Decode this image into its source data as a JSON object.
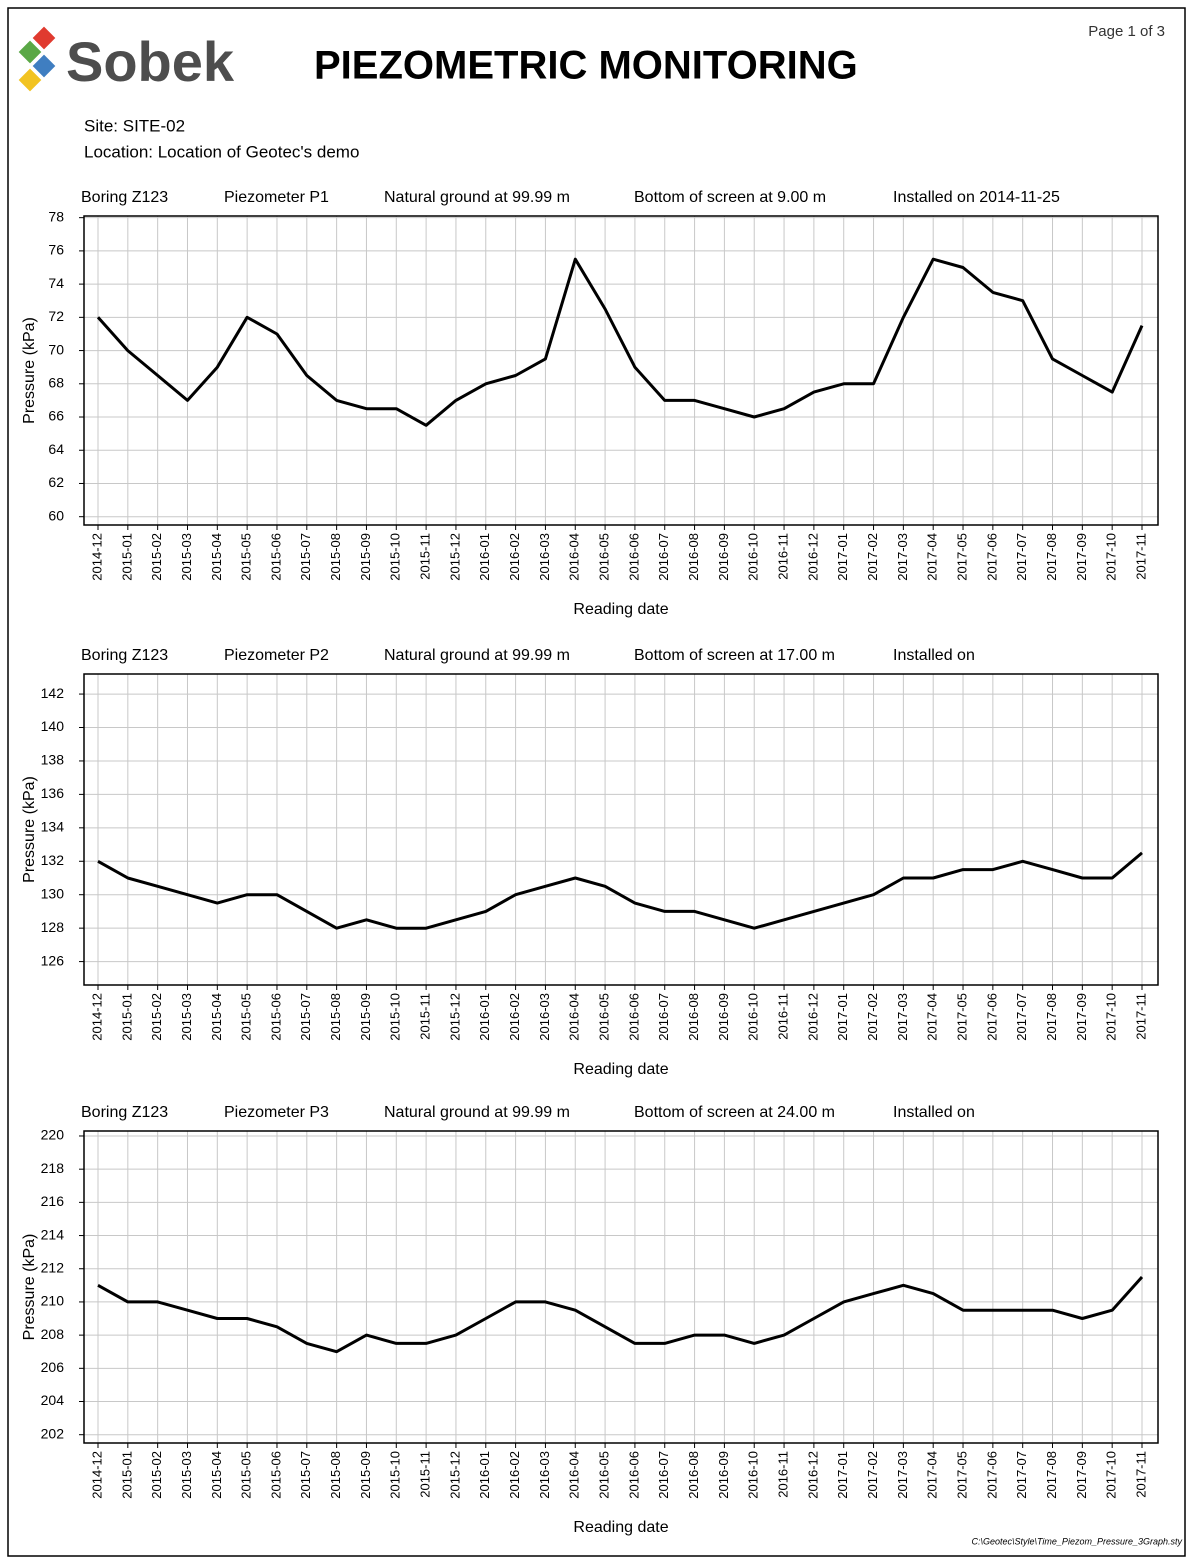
{
  "header": {
    "page": "Page 1 of 3",
    "logo": "Sobek",
    "title": "PIEZOMETRIC MONITORING",
    "site": "Site: SITE-02",
    "location": "Location: Location of Geotec's demo",
    "footer": "C:\\Geotec\\Style\\Time_Piezom_Pressure_3Graph.sty"
  },
  "chart_data": [
    {
      "type": "line",
      "info": [
        "Boring Z123",
        "Piezometer P1",
        "Natural ground at 99.99 m",
        "Bottom of screen at 9.00 m",
        "Installed on 2014-11-25"
      ],
      "y_label": "Pressure (kPa)",
      "x_label": "Reading date",
      "x": [
        "2014-12",
        "2015-01",
        "2015-02",
        "2015-03",
        "2015-04",
        "2015-05",
        "2015-06",
        "2015-07",
        "2015-08",
        "2015-09",
        "2015-10",
        "2015-11",
        "2015-12",
        "2016-01",
        "2016-02",
        "2016-03",
        "2016-04",
        "2016-05",
        "2016-06",
        "2016-07",
        "2016-08",
        "2016-09",
        "2016-10",
        "2016-11",
        "2016-12",
        "2017-01",
        "2017-02",
        "2017-03",
        "2017-04",
        "2017-05",
        "2017-06",
        "2017-07",
        "2017-08",
        "2017-09",
        "2017-10",
        "2017-11"
      ],
      "series": [
        {
          "name": "P1",
          "color": "#000000",
          "values": [
            72,
            70,
            68.5,
            67,
            69,
            72,
            71,
            68.5,
            67,
            66.5,
            66.5,
            65.5,
            67,
            68,
            68.5,
            69.5,
            75.5,
            72.5,
            69,
            67,
            67,
            66.5,
            66,
            66.5,
            67.5,
            68,
            68,
            72,
            75.5,
            75,
            73.5,
            73,
            69.5,
            68.5,
            67.5,
            71.5
          ]
        }
      ],
      "ylim": [
        59.5,
        78.1
      ],
      "yticks": [
        60,
        62,
        64,
        66,
        68,
        70,
        72,
        74,
        76,
        78
      ],
      "grid": true
    },
    {
      "type": "line",
      "info": [
        "Boring Z123",
        "Piezometer P2",
        "Natural ground at 99.99 m",
        "Bottom of screen at 17.00 m",
        "Installed on"
      ],
      "y_label": "Pressure (kPa)",
      "x_label": "Reading date",
      "x": [
        "2014-12",
        "2015-01",
        "2015-02",
        "2015-03",
        "2015-04",
        "2015-05",
        "2015-06",
        "2015-07",
        "2015-08",
        "2015-09",
        "2015-10",
        "2015-11",
        "2015-12",
        "2016-01",
        "2016-02",
        "2016-03",
        "2016-04",
        "2016-05",
        "2016-06",
        "2016-07",
        "2016-08",
        "2016-09",
        "2016-10",
        "2016-11",
        "2016-12",
        "2017-01",
        "2017-02",
        "2017-03",
        "2017-04",
        "2017-05",
        "2017-06",
        "2017-07",
        "2017-08",
        "2017-09",
        "2017-10",
        "2017-11"
      ],
      "series": [
        {
          "name": "P2",
          "color": "#000000",
          "values": [
            132,
            131,
            130.5,
            130,
            129.5,
            130,
            130,
            129,
            128,
            128.5,
            128,
            128,
            128.5,
            129,
            130,
            130.5,
            131,
            130.5,
            129.5,
            129,
            129,
            128.5,
            128,
            128.5,
            129,
            129.5,
            130,
            131,
            131,
            131.5,
            131.5,
            132,
            131.5,
            131,
            131,
            132.5
          ]
        }
      ],
      "ylim": [
        124.6,
        143.2
      ],
      "yticks": [
        126,
        128,
        130,
        132,
        134,
        136,
        138,
        140,
        142
      ],
      "grid": true
    },
    {
      "type": "line",
      "info": [
        "Boring Z123",
        "Piezometer P3",
        "Natural ground at 99.99 m",
        "Bottom of screen at 24.00 m",
        "Installed on"
      ],
      "y_label": "Pressure (kPa)",
      "x_label": "Reading date",
      "x": [
        "2014-12",
        "2015-01",
        "2015-02",
        "2015-03",
        "2015-04",
        "2015-05",
        "2015-06",
        "2015-07",
        "2015-08",
        "2015-09",
        "2015-10",
        "2015-11",
        "2015-12",
        "2016-01",
        "2016-02",
        "2016-03",
        "2016-04",
        "2016-05",
        "2016-06",
        "2016-07",
        "2016-08",
        "2016-09",
        "2016-10",
        "2016-11",
        "2016-12",
        "2017-01",
        "2017-02",
        "2017-03",
        "2017-04",
        "2017-05",
        "2017-06",
        "2017-07",
        "2017-08",
        "2017-09",
        "2017-10",
        "2017-11"
      ],
      "series": [
        {
          "name": "P3",
          "color": "#000000",
          "values": [
            211,
            210,
            210,
            209.5,
            209,
            209,
            208.5,
            207.5,
            207,
            208,
            207.5,
            207.5,
            208,
            209,
            210,
            210,
            209.5,
            208.5,
            207.5,
            207.5,
            208,
            208,
            207.5,
            208,
            209,
            210,
            210.5,
            211,
            210.5,
            209.5,
            209.5,
            209.5,
            209.5,
            209,
            209.5,
            211.5
          ]
        }
      ],
      "ylim": [
        201.5,
        220.3
      ],
      "yticks": [
        202,
        204,
        206,
        208,
        210,
        212,
        214,
        216,
        218,
        220
      ],
      "grid": true
    }
  ]
}
